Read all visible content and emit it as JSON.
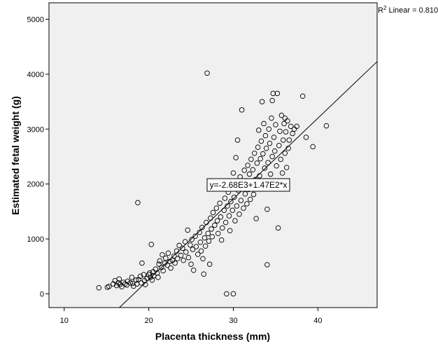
{
  "chart_data": {
    "type": "scatter",
    "title": "",
    "xlabel": "Placenta thickness (mm)",
    "ylabel": "Estimated fetal weight (g)",
    "xlim": [
      8.2,
      47
    ],
    "ylim": [
      -250,
      5300
    ],
    "xticks": [
      10,
      20,
      30,
      40
    ],
    "yticks": [
      0,
      1000,
      2000,
      3000,
      4000,
      5000
    ],
    "xtick_labels": [
      "10",
      "20",
      "30",
      "40"
    ],
    "ytick_labels": [
      "0",
      "1000",
      "2000",
      "3000",
      "4000",
      "5000"
    ],
    "grid": false,
    "fit_line": {
      "intercept": -2680,
      "slope": 147,
      "x_range": [
        16.5,
        47
      ]
    },
    "equation_label": "y=-2.68E3+1.47E2*x",
    "r2_prefix": "R",
    "r2_sup": "2",
    "r2_suffix": " Linear = 0.810",
    "points": [
      [
        14.1,
        110
      ],
      [
        15.1,
        120
      ],
      [
        15.3,
        135
      ],
      [
        15.8,
        180
      ],
      [
        16.0,
        240
      ],
      [
        16.2,
        150
      ],
      [
        16.4,
        200
      ],
      [
        16.5,
        270
      ],
      [
        16.6,
        170
      ],
      [
        16.8,
        130
      ],
      [
        17.0,
        210
      ],
      [
        17.2,
        180
      ],
      [
        17.4,
        160
      ],
      [
        17.5,
        230
      ],
      [
        17.8,
        200
      ],
      [
        18.0,
        300
      ],
      [
        18.1,
        190
      ],
      [
        18.2,
        140
      ],
      [
        18.5,
        250
      ],
      [
        18.6,
        180
      ],
      [
        18.7,
        1660
      ],
      [
        18.8,
        260
      ],
      [
        19.0,
        320
      ],
      [
        19.1,
        200
      ],
      [
        19.2,
        560
      ],
      [
        19.4,
        350
      ],
      [
        19.5,
        240
      ],
      [
        19.6,
        170
      ],
      [
        19.8,
        280
      ],
      [
        20.0,
        350
      ],
      [
        20.1,
        380
      ],
      [
        20.2,
        300
      ],
      [
        20.3,
        900
      ],
      [
        20.4,
        250
      ],
      [
        20.5,
        400
      ],
      [
        20.6,
        330
      ],
      [
        20.8,
        450
      ],
      [
        21.0,
        380
      ],
      [
        21.1,
        300
      ],
      [
        21.2,
        540
      ],
      [
        21.3,
        600
      ],
      [
        21.5,
        480
      ],
      [
        21.6,
        710
      ],
      [
        21.7,
        420
      ],
      [
        21.9,
        560
      ],
      [
        22.0,
        650
      ],
      [
        22.2,
        520
      ],
      [
        22.3,
        740
      ],
      [
        22.5,
        590
      ],
      [
        22.6,
        470
      ],
      [
        22.8,
        610
      ],
      [
        23.0,
        690
      ],
      [
        23.1,
        560
      ],
      [
        23.3,
        780
      ],
      [
        23.4,
        640
      ],
      [
        23.6,
        880
      ],
      [
        23.8,
        700
      ],
      [
        24.0,
        830
      ],
      [
        24.1,
        610
      ],
      [
        24.3,
        950
      ],
      [
        24.4,
        760
      ],
      [
        24.6,
        1160
      ],
      [
        24.7,
        660
      ],
      [
        24.9,
        890
      ],
      [
        25.0,
        540
      ],
      [
        25.1,
        990
      ],
      [
        25.2,
        810
      ],
      [
        25.3,
        430
      ],
      [
        25.5,
        1050
      ],
      [
        25.6,
        860
      ],
      [
        25.8,
        720
      ],
      [
        26.0,
        1120
      ],
      [
        26.1,
        940
      ],
      [
        26.2,
        780
      ],
      [
        26.3,
        1210
      ],
      [
        26.4,
        640
      ],
      [
        26.5,
        360
      ],
      [
        26.6,
        1020
      ],
      [
        26.7,
        870
      ],
      [
        26.8,
        1300
      ],
      [
        26.9,
        4020
      ],
      [
        27.0,
        1100
      ],
      [
        27.1,
        960
      ],
      [
        27.2,
        540
      ],
      [
        27.3,
        1380
      ],
      [
        27.4,
        1180
      ],
      [
        27.5,
        1040
      ],
      [
        27.6,
        1480
      ],
      [
        27.8,
        1250
      ],
      [
        28.0,
        1560
      ],
      [
        28.1,
        1330
      ],
      [
        28.2,
        1100
      ],
      [
        28.4,
        1650
      ],
      [
        28.5,
        1400
      ],
      [
        28.6,
        980
      ],
      [
        28.7,
        1200
      ],
      [
        28.9,
        1520
      ],
      [
        29.0,
        1740
      ],
      [
        29.1,
        1300
      ],
      [
        29.2,
        0
      ],
      [
        29.3,
        1600
      ],
      [
        29.4,
        1850
      ],
      [
        29.5,
        1420
      ],
      [
        29.6,
        1150
      ],
      [
        29.7,
        1680
      ],
      [
        29.8,
        1950
      ],
      [
        29.9,
        1520
      ],
      [
        30.0,
        0
      ],
      [
        30.0,
        2200
      ],
      [
        30.1,
        1760
      ],
      [
        30.2,
        1330
      ],
      [
        30.3,
        2040
      ],
      [
        30.4,
        1600
      ],
      [
        30.5,
        2800
      ],
      [
        30.6,
        1880
      ],
      [
        30.7,
        1450
      ],
      [
        30.8,
        2130
      ],
      [
        30.9,
        1700
      ],
      [
        31.0,
        3350
      ],
      [
        31.1,
        1990
      ],
      [
        31.2,
        1560
      ],
      [
        31.3,
        2250
      ],
      [
        31.4,
        1820
      ],
      [
        31.5,
        2060
      ],
      [
        31.6,
        1640
      ],
      [
        31.7,
        2340
      ],
      [
        31.8,
        1900
      ],
      [
        31.9,
        2180
      ],
      [
        32.0,
        1720
      ],
      [
        32.1,
        2450
      ],
      [
        32.2,
        2000
      ],
      [
        32.3,
        2260
      ],
      [
        32.4,
        1810
      ],
      [
        32.5,
        2560
      ],
      [
        32.6,
        2080
      ],
      [
        32.7,
        1370
      ],
      [
        32.8,
        2380
      ],
      [
        32.9,
        2670
      ],
      [
        33.0,
        2980
      ],
      [
        33.1,
        2150
      ],
      [
        33.2,
        2460
      ],
      [
        33.3,
        2780
      ],
      [
        33.4,
        1950
      ],
      [
        33.5,
        2550
      ],
      [
        33.6,
        3100
      ],
      [
        33.7,
        2290
      ],
      [
        33.8,
        2880
      ],
      [
        33.9,
        2650
      ],
      [
        34.0,
        530
      ],
      [
        34.0,
        1540
      ],
      [
        34.1,
        2390
      ],
      [
        34.2,
        3000
      ],
      [
        34.3,
        2740
      ],
      [
        34.4,
        2180
      ],
      [
        34.5,
        3200
      ],
      [
        34.6,
        2500
      ],
      [
        34.7,
        3650
      ],
      [
        34.8,
        2850
      ],
      [
        34.9,
        2600
      ],
      [
        35.0,
        3080
      ],
      [
        35.1,
        2330
      ],
      [
        35.2,
        3650
      ],
      [
        35.3,
        1200
      ],
      [
        35.4,
        2700
      ],
      [
        35.5,
        2960
      ],
      [
        35.6,
        2450
      ],
      [
        35.7,
        3250
      ],
      [
        35.8,
        2200
      ],
      [
        35.9,
        2800
      ],
      [
        36.0,
        3100
      ],
      [
        36.1,
        2560
      ],
      [
        36.2,
        2950
      ],
      [
        36.3,
        2300
      ],
      [
        36.4,
        3150
      ],
      [
        36.5,
        2650
      ],
      [
        36.6,
        2800
      ],
      [
        36.8,
        3050
      ],
      [
        37.0,
        2920
      ],
      [
        37.2,
        3000
      ],
      [
        38.2,
        3600
      ],
      [
        38.6,
        2850
      ],
      [
        39.4,
        2680
      ],
      [
        41.0,
        3060
      ],
      [
        33.4,
        3500
      ],
      [
        34.6,
        3520
      ],
      [
        30.3,
        2480
      ],
      [
        36.1,
        3200
      ],
      [
        37.5,
        3050
      ]
    ]
  }
}
